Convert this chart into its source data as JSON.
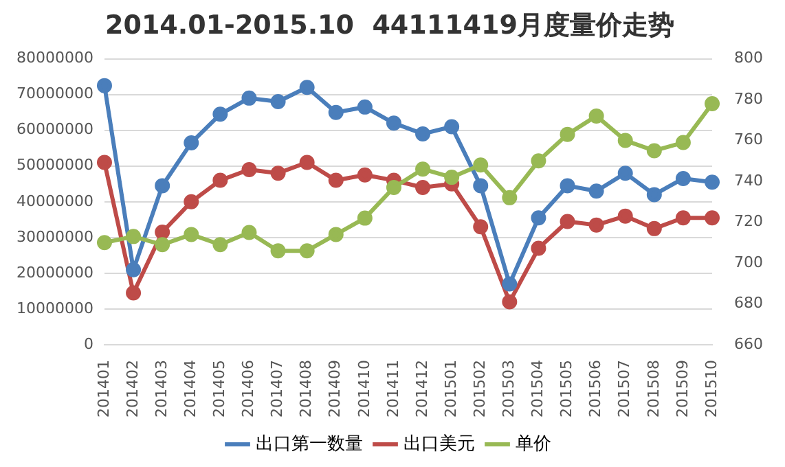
{
  "chart_data": {
    "type": "line",
    "title": "2014.01-2015.10  44111419月度量价走势",
    "categories": [
      "201401",
      "201402",
      "201403",
      "201404",
      "201405",
      "201406",
      "201407",
      "201408",
      "201409",
      "201410",
      "201411",
      "201412",
      "201501",
      "201502",
      "201503",
      "201504",
      "201505",
      "201506",
      "201507",
      "201508",
      "201509",
      "201510"
    ],
    "series": [
      {
        "name": "出口第一数量",
        "color": "#4a7ebb",
        "values": [
          72500000,
          21000000,
          44500000,
          56500000,
          64500000,
          69000000,
          68000000,
          72000000,
          65000000,
          66500000,
          62000000,
          59000000,
          61000000,
          44500000,
          17000000,
          35500000,
          44500000,
          43000000,
          48000000,
          42000000,
          46500000,
          45500000
        ]
      },
      {
        "name": "出口美元",
        "color": "#be4b48",
        "values": [
          51000000,
          14500000,
          31500000,
          40000000,
          46000000,
          49000000,
          48000000,
          51000000,
          46000000,
          47500000,
          46000000,
          44000000,
          45000000,
          33000000,
          12000000,
          27000000,
          34500000,
          33500000,
          36000000,
          32500000,
          35500000,
          35500000
        ]
      },
      {
        "name": "单价",
        "color": "#98b954",
        "axis": "y2",
        "values": [
          710,
          713,
          709,
          714,
          709,
          715,
          706,
          706,
          714,
          722,
          737,
          746,
          742,
          748,
          732,
          750,
          763,
          772,
          760,
          755,
          759,
          778
        ]
      }
    ],
    "ylim": [
      0,
      80000000
    ],
    "yticks": [
      0,
      10000000,
      20000000,
      30000000,
      40000000,
      50000000,
      60000000,
      70000000,
      80000000
    ],
    "y2lim": [
      660,
      800
    ],
    "y2ticks": [
      660,
      680,
      700,
      720,
      740,
      760,
      780,
      800
    ],
    "grid": "y",
    "legend": "bottom",
    "marker": "circle",
    "line_style": "solid"
  }
}
